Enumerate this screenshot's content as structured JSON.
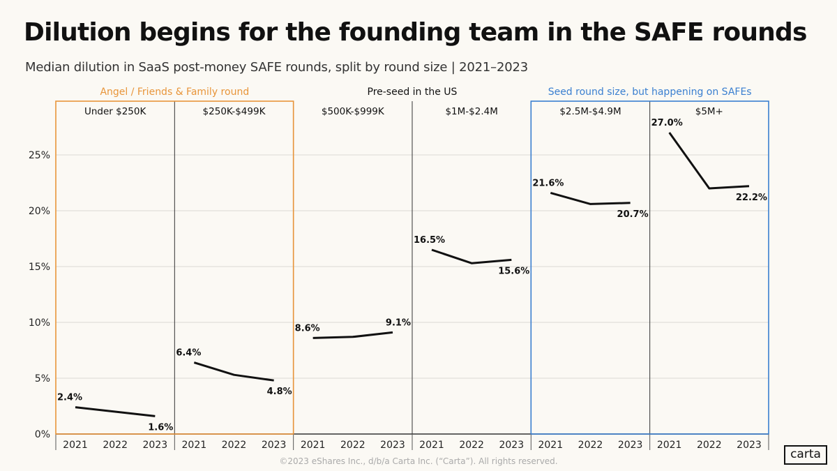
{
  "title": "Dilution begins for the founding team in the SAFE rounds",
  "subtitle": "Median dilution in SaaS post-money SAFE rounds, split by round size | 2021–2023",
  "footer": "©2023 eShares Inc., d/b/a Carta Inc. (“Carta”). All rights reserved.",
  "logo": "carta",
  "colors": {
    "angel": "#e8953a",
    "seed": "#3a7fd0",
    "line": "#111111",
    "grid": "#e6e4df"
  },
  "chart_data": {
    "type": "line",
    "title": "Dilution begins for the founding team in the SAFE rounds",
    "ylabel": "Median dilution",
    "ylim": [
      0,
      28
    ],
    "yticks": [
      0,
      5,
      10,
      15,
      20,
      25
    ],
    "ytick_labels": [
      "0%",
      "5%",
      "10%",
      "15%",
      "20%",
      "25%"
    ],
    "x": [
      "2021",
      "2022",
      "2023"
    ],
    "groups": [
      {
        "label": "Angel / Friends & Family round",
        "color": "#e8953a",
        "panels": [
          0,
          1
        ]
      },
      {
        "label": "Pre-seed in the US",
        "color": "#111111",
        "panels": [
          2,
          3
        ]
      },
      {
        "label": "Seed round size, but happening on SAFEs",
        "color": "#3a7fd0",
        "panels": [
          4,
          5
        ]
      }
    ],
    "series": [
      {
        "name": "Under $250K",
        "values": [
          2.4,
          2.0,
          1.6
        ],
        "labels": [
          "2.4%",
          "",
          "1.6%"
        ]
      },
      {
        "name": "$250K-$499K",
        "values": [
          6.4,
          5.3,
          4.8
        ],
        "labels": [
          "6.4%",
          "",
          "4.8%"
        ]
      },
      {
        "name": "$500K-$999K",
        "values": [
          8.6,
          8.7,
          9.1
        ],
        "labels": [
          "8.6%",
          "",
          "9.1%"
        ]
      },
      {
        "name": "$1M-$2.4M",
        "values": [
          16.5,
          15.3,
          15.6
        ],
        "labels": [
          "16.5%",
          "",
          "15.6%"
        ]
      },
      {
        "name": "$2.5M-$4.9M",
        "values": [
          21.6,
          20.6,
          20.7
        ],
        "labels": [
          "21.6%",
          "",
          "20.7%"
        ]
      },
      {
        "name": "$5M+",
        "values": [
          27.0,
          22.0,
          22.2
        ],
        "labels": [
          "27.0%",
          "",
          "22.2%"
        ]
      }
    ]
  }
}
